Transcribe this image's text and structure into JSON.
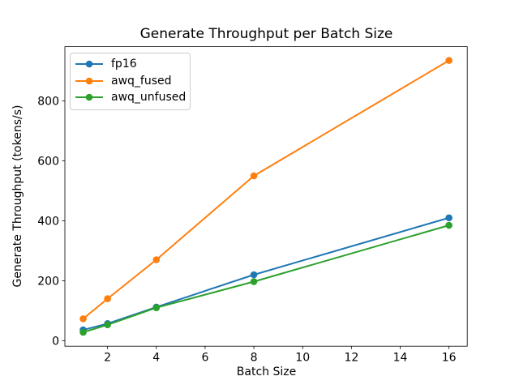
{
  "figure": {
    "background": "#ffffff",
    "spine_color": "#000000",
    "text_color": "#000000"
  },
  "chart_data": {
    "type": "line",
    "title": "Generate Throughput per Batch Size",
    "xlabel": "Batch Size",
    "ylabel": "Generate Throughput (tokens/s)",
    "x": [
      1,
      2,
      4,
      8,
      16
    ],
    "series": [
      {
        "name": "fp16",
        "color": "#1f77b4",
        "values": [
          36,
          57,
          112,
          220,
          410
        ]
      },
      {
        "name": "awq_fused",
        "color": "#ff7f0e",
        "values": [
          73,
          140,
          270,
          550,
          935
        ]
      },
      {
        "name": "awq_unfused",
        "color": "#2ca02c",
        "values": [
          28,
          53,
          110,
          197,
          385
        ]
      }
    ],
    "marker": "o",
    "xticks": [
      2,
      4,
      6,
      8,
      10,
      12,
      14,
      16
    ],
    "yticks": [
      0,
      200,
      400,
      600,
      800
    ],
    "xlim": [
      0.25,
      16.75
    ],
    "ylim": [
      -18.5,
      981
    ],
    "grid": false,
    "legend_position": "upper left"
  }
}
